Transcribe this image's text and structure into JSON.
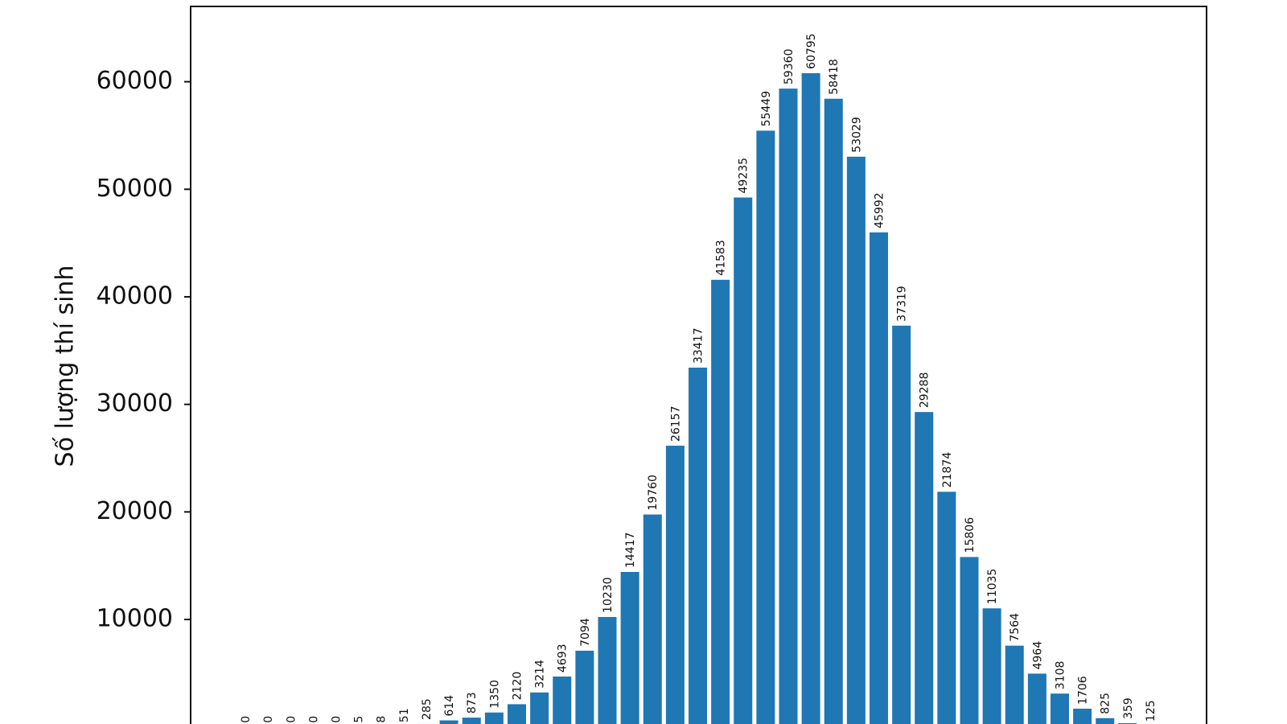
{
  "chart_data": {
    "type": "bar",
    "y_label": "Số lượng thí sinh",
    "categories": [
      null,
      null,
      null,
      null,
      null,
      null,
      null,
      null,
      null,
      null,
      null,
      null,
      null,
      null,
      null,
      null,
      null,
      null,
      null,
      null,
      null,
      null,
      null,
      null,
      null,
      null,
      null,
      null,
      null,
      null,
      null,
      null,
      null,
      null,
      null,
      null,
      null,
      null,
      null,
      null,
      null
    ],
    "values": [
      0,
      0,
      0,
      0,
      0,
      5,
      8,
      51,
      285,
      614,
      873,
      1350,
      2120,
      3214,
      4693,
      7094,
      10230,
      14417,
      19760,
      26157,
      33417,
      41583,
      49235,
      55449,
      59360,
      60795,
      58418,
      53029,
      45992,
      37319,
      29288,
      21874,
      15806,
      11035,
      7564,
      4964,
      3108,
      1706,
      825,
      359,
      125
    ],
    "color": "#1f77b4",
    "ylim": [
      0,
      67000
    ],
    "yticks": [
      10000,
      20000,
      30000,
      40000,
      50000,
      60000
    ],
    "grid": false
  }
}
